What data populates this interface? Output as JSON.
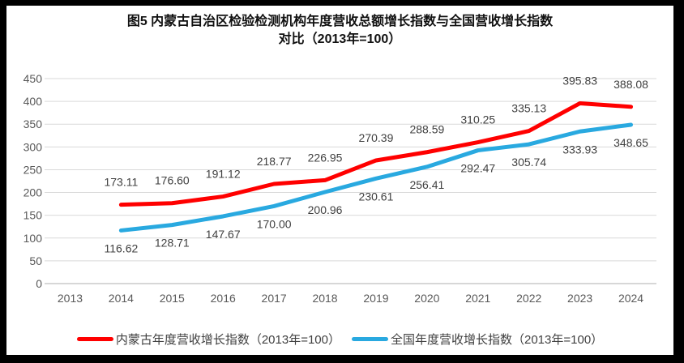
{
  "title": {
    "line1": "图5  内蒙古自治区检验检测机构年度营收总额增长指数与全国营收增长指数",
    "line2": "对比（2013年=100）"
  },
  "chart_data": {
    "type": "line",
    "title": "图5 内蒙古自治区检验检测机构年度营收总额增长指数与全国营收增长指数对比（2013年=100）",
    "categories": [
      "2013",
      "2014",
      "2015",
      "2016",
      "2017",
      "2018",
      "2019",
      "2020",
      "2021",
      "2022",
      "2023",
      "2024"
    ],
    "series": [
      {
        "name": "内蒙古年度营收增长指数（2013年=100）",
        "color": "#FF0000",
        "label_position": "above",
        "values": [
          null,
          173.11,
          176.6,
          191.12,
          218.77,
          226.95,
          270.39,
          288.59,
          310.25,
          335.13,
          395.83,
          388.08
        ],
        "labels": [
          null,
          "173.11",
          "176.60",
          "191.12",
          "218.77",
          "226.95",
          "270.39",
          "288.59",
          "310.25",
          "335.13",
          "395.83",
          "388.08"
        ]
      },
      {
        "name": "全国年度营收增长指数（2013年=100）",
        "color": "#29A9E0",
        "label_position": "below",
        "values": [
          null,
          116.62,
          128.71,
          147.67,
          170.0,
          200.96,
          230.61,
          256.41,
          292.47,
          305.74,
          333.93,
          348.65
        ],
        "labels": [
          null,
          "116.62",
          "128.71",
          "147.67",
          "170.00",
          "200.96",
          "230.61",
          "256.41",
          "292.47",
          "305.74",
          "333.93",
          "348.65"
        ]
      }
    ],
    "ylim": [
      0,
      450
    ],
    "ytick_step": 50,
    "grid": true,
    "legend_position": "bottom",
    "colors": {
      "gridline": "#D9D9D9",
      "axis_line": "#BFBFBF",
      "tick_label": "#595959",
      "data_label": "#404040"
    }
  }
}
